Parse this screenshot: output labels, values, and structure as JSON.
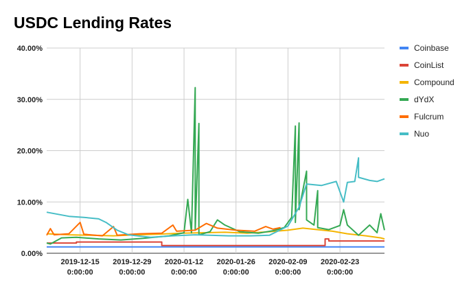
{
  "chart_data": {
    "type": "line",
    "title": "USDC Lending Rates",
    "xlabel": "",
    "ylabel": "",
    "x_range": [
      "2019-12-06",
      "2020-03-06"
    ],
    "ylim": [
      0,
      40
    ],
    "y_ticks": [
      "0.00%",
      "10.00%",
      "20.00%",
      "30.00%",
      "40.00%"
    ],
    "y_tick_values": [
      0,
      10,
      20,
      30,
      40
    ],
    "x_ticks": [
      {
        "date": "2019-12-15",
        "line1": "2019-12-15",
        "line2": "0:00:00"
      },
      {
        "date": "2019-12-29",
        "line1": "2019-12-29",
        "line2": "0:00:00"
      },
      {
        "date": "2020-01-12",
        "line1": "2020-01-12",
        "line2": "0:00:00"
      },
      {
        "date": "2020-01-26",
        "line1": "2020-01-26",
        "line2": "0:00:00"
      },
      {
        "date": "2020-02-09",
        "line1": "2020-02-09",
        "line2": "0:00:00"
      },
      {
        "date": "2020-02-23",
        "line1": "2020-02-23",
        "line2": "0:00:00"
      }
    ],
    "grid": true,
    "legend_position": "right",
    "series": [
      {
        "name": "Coinbase",
        "color": "#4285f4",
        "points": [
          [
            "2019-12-06",
            1.25
          ],
          [
            "2020-03-06",
            1.25
          ]
        ]
      },
      {
        "name": "CoinList",
        "color": "#db4437",
        "points": [
          [
            "2019-12-06",
            2.0
          ],
          [
            "2019-12-14",
            2.0
          ],
          [
            "2019-12-14",
            2.2
          ],
          [
            "2020-01-06",
            2.2
          ],
          [
            "2020-01-06",
            1.5
          ],
          [
            "2020-02-19",
            1.5
          ],
          [
            "2020-02-19",
            2.8
          ],
          [
            "2020-02-20",
            2.8
          ],
          [
            "2020-02-20",
            2.4
          ],
          [
            "2020-03-06",
            2.4
          ]
        ]
      },
      {
        "name": "Compound",
        "color": "#f4b400",
        "points": [
          [
            "2019-12-06",
            3.8
          ],
          [
            "2019-12-12",
            3.6
          ],
          [
            "2019-12-18",
            3.5
          ],
          [
            "2019-12-24",
            3.4
          ],
          [
            "2019-12-30",
            3.6
          ],
          [
            "2020-01-05",
            3.7
          ],
          [
            "2020-01-11",
            3.9
          ],
          [
            "2020-01-17",
            4.0
          ],
          [
            "2020-01-23",
            4.1
          ],
          [
            "2020-01-29",
            3.9
          ],
          [
            "2020-02-04",
            4.2
          ],
          [
            "2020-02-09",
            4.5
          ],
          [
            "2020-02-13",
            4.9
          ],
          [
            "2020-02-17",
            4.6
          ],
          [
            "2020-02-21",
            4.3
          ],
          [
            "2020-02-25",
            3.8
          ],
          [
            "2020-03-01",
            3.4
          ],
          [
            "2020-03-05",
            3.0
          ],
          [
            "2020-03-06",
            2.8
          ]
        ]
      },
      {
        "name": "dYdX",
        "color": "#34a853",
        "points": [
          [
            "2019-12-06",
            2.0
          ],
          [
            "2019-12-07",
            1.8
          ],
          [
            "2019-12-10",
            3.0
          ],
          [
            "2019-12-14",
            3.1
          ],
          [
            "2019-12-20",
            2.8
          ],
          [
            "2019-12-26",
            2.6
          ],
          [
            "2020-01-01",
            2.9
          ],
          [
            "2020-01-08",
            3.4
          ],
          [
            "2020-01-12",
            4.0
          ],
          [
            "2020-01-13",
            10.5
          ],
          [
            "2020-01-14",
            4.0
          ],
          [
            "2020-01-15",
            32.3
          ],
          [
            "2020-01-15",
            4.5
          ],
          [
            "2020-01-16",
            25.3
          ],
          [
            "2020-01-16",
            3.6
          ],
          [
            "2020-01-19",
            4.2
          ],
          [
            "2020-01-21",
            6.5
          ],
          [
            "2020-01-23",
            5.5
          ],
          [
            "2020-01-27",
            4.2
          ],
          [
            "2020-02-01",
            3.9
          ],
          [
            "2020-02-05",
            4.4
          ],
          [
            "2020-02-08",
            5.0
          ],
          [
            "2020-02-10",
            7.0
          ],
          [
            "2020-02-11",
            24.8
          ],
          [
            "2020-02-11",
            6.0
          ],
          [
            "2020-02-12",
            25.4
          ],
          [
            "2020-02-12",
            8.5
          ],
          [
            "2020-02-14",
            16.0
          ],
          [
            "2020-02-14",
            6.5
          ],
          [
            "2020-02-16",
            5.5
          ],
          [
            "2020-02-17",
            12.2
          ],
          [
            "2020-02-17",
            5.0
          ],
          [
            "2020-02-20",
            4.6
          ],
          [
            "2020-02-23",
            5.4
          ],
          [
            "2020-02-24",
            8.5
          ],
          [
            "2020-02-25",
            5.5
          ],
          [
            "2020-02-28",
            3.5
          ],
          [
            "2020-03-02",
            5.5
          ],
          [
            "2020-03-04",
            4.0
          ],
          [
            "2020-03-05",
            7.7
          ],
          [
            "2020-03-06",
            4.5
          ]
        ]
      },
      {
        "name": "Fulcrum",
        "color": "#ff6d01",
        "points": [
          [
            "2019-12-06",
            3.5
          ],
          [
            "2019-12-07",
            4.8
          ],
          [
            "2019-12-08",
            3.6
          ],
          [
            "2019-12-12",
            3.8
          ],
          [
            "2019-12-15",
            6.0
          ],
          [
            "2019-12-16",
            3.7
          ],
          [
            "2019-12-21",
            3.4
          ],
          [
            "2019-12-24",
            5.2
          ],
          [
            "2019-12-25",
            3.5
          ],
          [
            "2019-12-31",
            3.8
          ],
          [
            "2020-01-06",
            3.9
          ],
          [
            "2020-01-09",
            5.5
          ],
          [
            "2020-01-10",
            4.3
          ],
          [
            "2020-01-15",
            4.5
          ],
          [
            "2020-01-18",
            5.8
          ],
          [
            "2020-01-21",
            4.9
          ],
          [
            "2020-01-26",
            4.5
          ],
          [
            "2020-01-31",
            4.3
          ],
          [
            "2020-02-03",
            5.2
          ],
          [
            "2020-02-05",
            4.7
          ],
          [
            "2020-02-07",
            5.0
          ]
        ]
      },
      {
        "name": "Nuo",
        "color": "#46bdc6",
        "points": [
          [
            "2019-12-06",
            8.0
          ],
          [
            "2019-12-09",
            7.6
          ],
          [
            "2019-12-12",
            7.2
          ],
          [
            "2019-12-16",
            7.0
          ],
          [
            "2019-12-20",
            6.7
          ],
          [
            "2019-12-22",
            6.0
          ],
          [
            "2019-12-25",
            4.5
          ],
          [
            "2019-12-28",
            3.6
          ],
          [
            "2020-01-03",
            3.1
          ],
          [
            "2020-01-09",
            3.4
          ],
          [
            "2020-01-15",
            3.6
          ],
          [
            "2020-01-19",
            3.5
          ],
          [
            "2020-01-24",
            3.4
          ],
          [
            "2020-01-30",
            3.4
          ],
          [
            "2020-02-04",
            3.5
          ],
          [
            "2020-02-09",
            5.3
          ],
          [
            "2020-02-12",
            9.0
          ],
          [
            "2020-02-14",
            13.5
          ],
          [
            "2020-02-18",
            13.2
          ],
          [
            "2020-02-22",
            14.0
          ],
          [
            "2020-02-24",
            10.0
          ],
          [
            "2020-02-25",
            13.8
          ],
          [
            "2020-02-27",
            14.0
          ],
          [
            "2020-02-28",
            18.6
          ],
          [
            "2020-02-28",
            14.8
          ],
          [
            "2020-03-02",
            14.2
          ],
          [
            "2020-03-04",
            14.0
          ],
          [
            "2020-03-06",
            14.5
          ]
        ]
      }
    ]
  }
}
